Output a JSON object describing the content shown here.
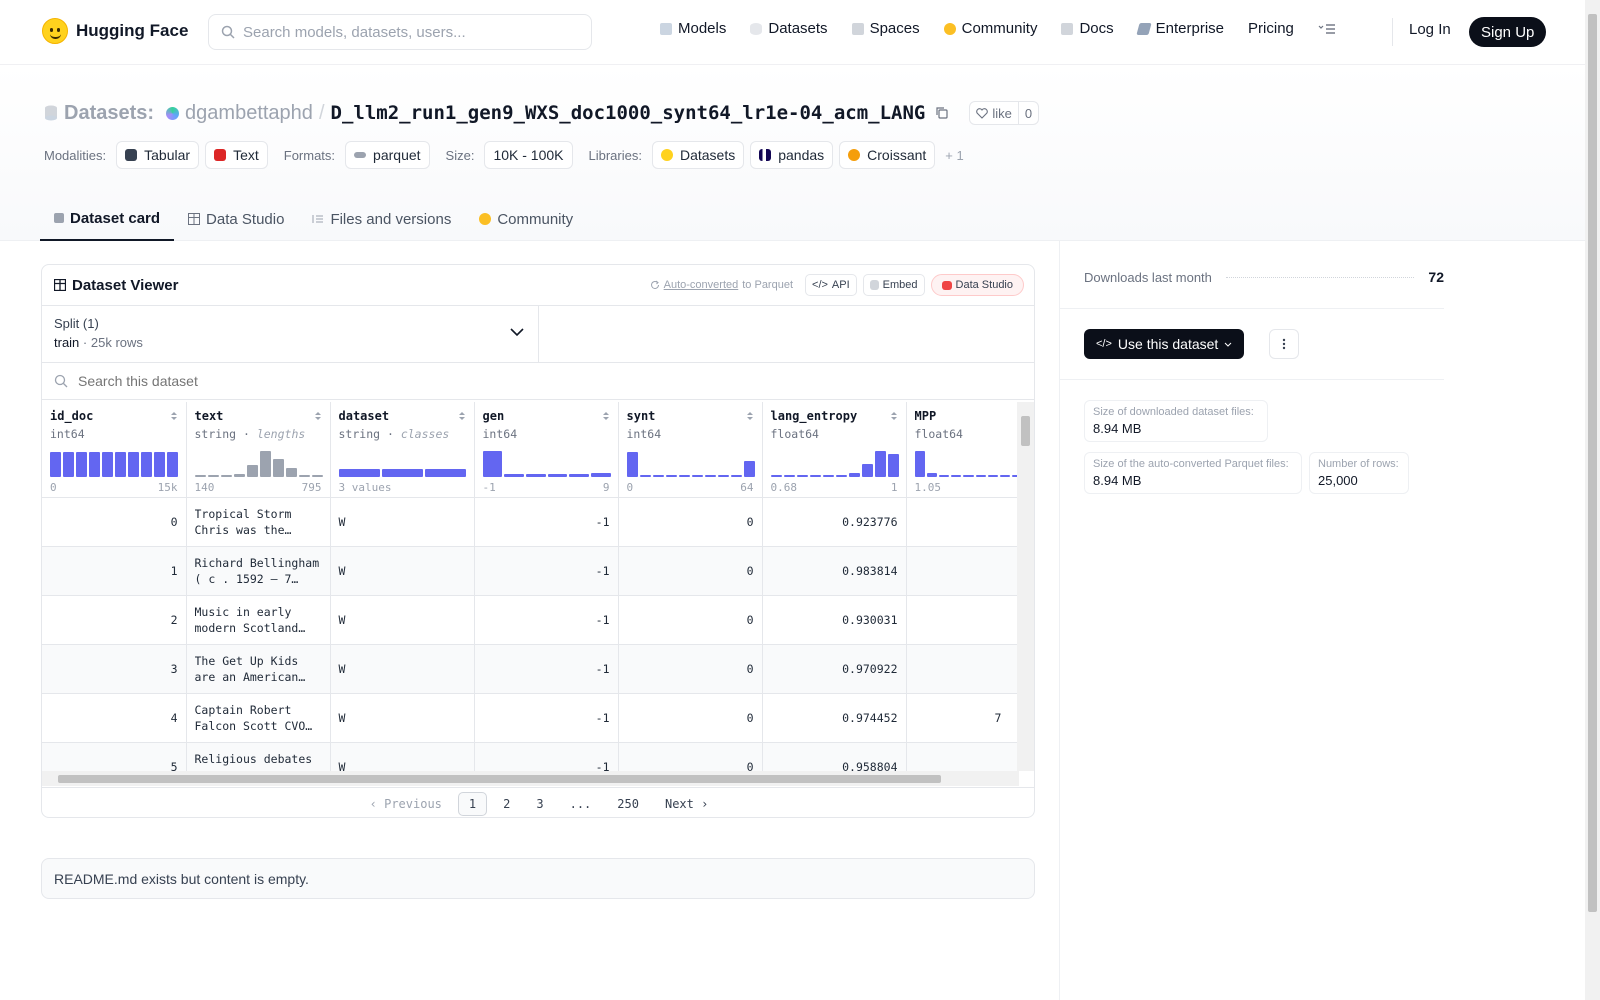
{
  "header": {
    "brand": "Hugging Face",
    "search_placeholder": "Search models, datasets, users...",
    "nav": [
      {
        "label": "Models",
        "icon": "model-icon",
        "color": "#a78bfa"
      },
      {
        "label": "Datasets",
        "icon": "dataset-icon",
        "color": "#f87171"
      },
      {
        "label": "Spaces",
        "icon": "spaces-icon",
        "color": "#93c5fd"
      },
      {
        "label": "Community",
        "icon": "community-icon",
        "color": "#fbbf24"
      },
      {
        "label": "Docs",
        "icon": "docs-icon",
        "color": "#cbd5e1"
      },
      {
        "label": "Enterprise",
        "icon": "enterprise-icon",
        "color": "#6366f1"
      },
      {
        "label": "Pricing"
      }
    ],
    "login": "Log In",
    "signup": "Sign Up"
  },
  "repo": {
    "type_label": "Datasets:",
    "owner": "dgambettaphd",
    "slash": "/",
    "name": "D_llm2_run1_gen9_WXS_doc1000_synt64_lr1e-04_acm_LANG",
    "like_label": "like",
    "like_count": "0",
    "modalities_label": "Modalities:",
    "modalities": [
      "Tabular",
      "Text"
    ],
    "formats_label": "Formats:",
    "formats": [
      "parquet"
    ],
    "size_label": "Size:",
    "size": "10K - 100K",
    "libraries_label": "Libraries:",
    "libraries": [
      "Datasets",
      "pandas",
      "Croissant"
    ],
    "more_libraries": "+ 1"
  },
  "tabs": [
    "Dataset card",
    "Data Studio",
    "Files and versions",
    "Community"
  ],
  "viewer": {
    "title": "Dataset Viewer",
    "auto_converted": "Auto-converted",
    "to_parquet": "to Parquet",
    "api": "API",
    "embed": "Embed",
    "data_studio": "Data Studio",
    "split_label": "Split (1)",
    "split_name": "train",
    "split_rows": "25k rows",
    "search_placeholder": "Search this dataset",
    "columns": [
      {
        "name": "id_doc",
        "type": "int64",
        "hint": "",
        "min": "0",
        "max": "15k"
      },
      {
        "name": "text",
        "type": "string",
        "hint": "lengths",
        "min": "140",
        "max": "795"
      },
      {
        "name": "dataset",
        "type": "string",
        "hint": "classes",
        "min": "3 values",
        "max": ""
      },
      {
        "name": "gen",
        "type": "int64",
        "hint": "",
        "min": "-1",
        "max": "9"
      },
      {
        "name": "synt",
        "type": "int64",
        "hint": "",
        "min": "0",
        "max": "64"
      },
      {
        "name": "lang_entropy",
        "type": "float64",
        "hint": "",
        "min": "0.68",
        "max": "1"
      },
      {
        "name": "MPP",
        "type": "float64",
        "hint": "",
        "min": "1.05",
        "max": ""
      }
    ],
    "histograms": {
      "id_doc": [
        0.95,
        0.95,
        0.95,
        0.95,
        0.95,
        0.97,
        0.95,
        0.95,
        0.95,
        0.95
      ],
      "text": [
        0.04,
        0.04,
        0.04,
        0.1,
        0.45,
        1.0,
        0.7,
        0.35,
        0.08,
        0.04
      ],
      "dataset": [
        0.25,
        0.25,
        0.25
      ],
      "gen": [
        1.0,
        0.12,
        0.12,
        0.12,
        0.12,
        0.15
      ],
      "synt": [
        0.95,
        0.04,
        0.04,
        0.04,
        0.04,
        0.04,
        0.04,
        0.04,
        0.04,
        0.6
      ],
      "lang_entropy": [
        0.04,
        0.04,
        0.04,
        0.04,
        0.04,
        0.04,
        0.15,
        0.5,
        1.0,
        0.9
      ],
      "MPP": [
        1.0,
        0.15,
        0.04,
        0.04,
        0.04,
        0.04,
        0.04,
        0.04,
        0.04,
        0.04
      ]
    },
    "rows": [
      {
        "id_doc": "0",
        "text": "Tropical Storm Chris was the…",
        "dataset": "W",
        "gen": "-1",
        "synt": "0",
        "lang_entropy": "0.923776",
        "mpp": ""
      },
      {
        "id_doc": "1",
        "text": "Richard Bellingham ( c . 1592 – 7…",
        "dataset": "W",
        "gen": "-1",
        "synt": "0",
        "lang_entropy": "0.983814",
        "mpp": ""
      },
      {
        "id_doc": "2",
        "text": "Music in early modern Scotland…",
        "dataset": "W",
        "gen": "-1",
        "synt": "0",
        "lang_entropy": "0.930031",
        "mpp": ""
      },
      {
        "id_doc": "3",
        "text": "The Get Up Kids are an American…",
        "dataset": "W",
        "gen": "-1",
        "synt": "0",
        "lang_entropy": "0.970922",
        "mpp": ""
      },
      {
        "id_doc": "4",
        "text": "Captain Robert Falcon Scott CVO…",
        "dataset": "W",
        "gen": "-1",
        "synt": "0",
        "lang_entropy": "0.974452",
        "mpp": "7"
      },
      {
        "id_doc": "5",
        "text": "Religious debates",
        "dataset": "W",
        "gen": "-1",
        "synt": "0",
        "lang_entropy": "0.958804",
        "mpp": ""
      }
    ],
    "pager": {
      "prev": "Previous",
      "pages": [
        "1",
        "2",
        "3",
        "...",
        "250"
      ],
      "next": "Next"
    }
  },
  "readme": "README.md exists but content is empty.",
  "side": {
    "downloads_label": "Downloads last month",
    "downloads": "72",
    "use_button": "Use this dataset",
    "size_dl_label": "Size of downloaded dataset files:",
    "size_dl": "8.94 MB",
    "size_parquet_label": "Size of the auto-converted Parquet files:",
    "size_parquet": "8.94 MB",
    "rows_label": "Number of rows:",
    "rows": "25,000"
  }
}
